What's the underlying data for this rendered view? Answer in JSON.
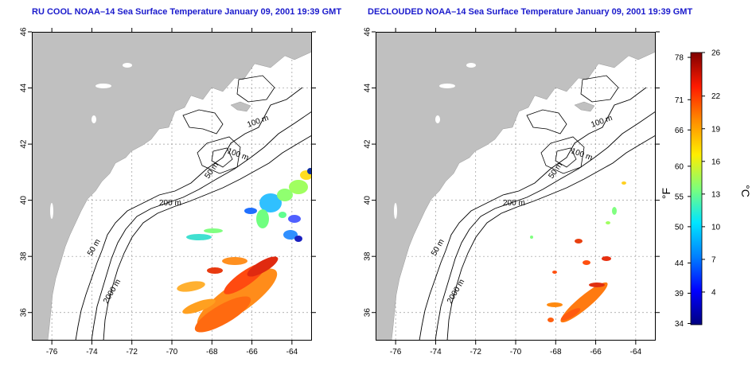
{
  "titles": {
    "left": "RU COOL NOAA–14 Sea Surface Temperature January 09, 2001 19:39 GMT",
    "right": "DECLOUDED NOAA–14 Sea Surface Temperature January 09, 2001 19:39 GMT"
  },
  "map_axes": {
    "lon_ticks": [
      "-76",
      "-74",
      "-72",
      "-70",
      "-68",
      "-66",
      "-64"
    ],
    "lat_ticks": [
      "36",
      "38",
      "40",
      "42",
      "44",
      "46"
    ],
    "lon_range": [
      -77,
      -63
    ],
    "lat_range": [
      35,
      46
    ]
  },
  "contour_labels": [
    "100 m",
    "100 m",
    "50 m",
    "200 m",
    "50 m",
    "2000 m"
  ],
  "colorbar": {
    "f_label": "°F",
    "c_label": "°C",
    "f_ticks": [
      "78",
      "71",
      "66",
      "60",
      "55",
      "50",
      "44",
      "39",
      "34"
    ],
    "c_ticks": [
      "26",
      "22",
      "19",
      "16",
      "13",
      "10",
      "7",
      "4"
    ],
    "c_range": [
      1,
      26
    ],
    "colors": [
      "#00007f",
      "#0000ff",
      "#0080ff",
      "#00e5ff",
      "#7dff7a",
      "#ffee00",
      "#ff8c00",
      "#ff1a00",
      "#7f0000"
    ]
  },
  "colors": {
    "land": "#c0c0c0",
    "ocean": "#ffffff",
    "title": "#1a1acc",
    "contour": "#000000",
    "grid": "#999999"
  }
}
